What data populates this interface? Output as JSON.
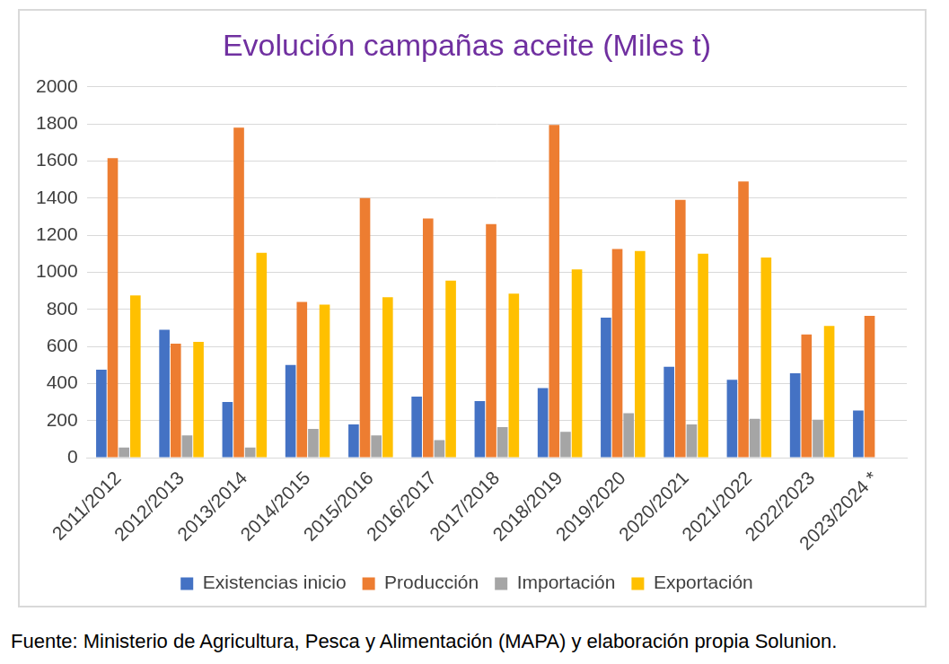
{
  "chart_data": {
    "type": "bar",
    "title": "Evolución campañas aceite (Miles t)",
    "source": "Fuente: Ministerio de Agricultura, Pesca y Alimentación (MAPA) y elaboración propia Solunion.",
    "categories": [
      "2011/2012",
      "2012/2013",
      "2013/2014",
      "2014/2015",
      "2015/2016",
      "2016/2017",
      "2017/2018",
      "2018/2019",
      "2019/2020",
      "2020/2021",
      "2021/2022",
      "2022/2023",
      "2023/2024 *"
    ],
    "series": [
      {
        "name": "Existencias inicio",
        "color": "#4472c4",
        "values": [
          475,
          690,
          300,
          500,
          180,
          330,
          305,
          375,
          755,
          490,
          420,
          455,
          255
        ]
      },
      {
        "name": "Producción",
        "color": "#ed7d31",
        "values": [
          1615,
          615,
          1780,
          840,
          1400,
          1290,
          1260,
          1795,
          1125,
          1390,
          1490,
          665,
          765
        ]
      },
      {
        "name": "Importación",
        "color": "#a5a5a5",
        "values": [
          55,
          120,
          55,
          155,
          120,
          95,
          165,
          140,
          240,
          180,
          210,
          205,
          null
        ]
      },
      {
        "name": "Exportación",
        "color": "#ffc000",
        "values": [
          875,
          625,
          1105,
          825,
          865,
          955,
          885,
          1015,
          1115,
          1100,
          1080,
          710,
          null
        ]
      }
    ],
    "ylim": [
      0,
      2000
    ],
    "yticks": [
      0,
      200,
      400,
      600,
      800,
      1000,
      1200,
      1400,
      1600,
      1800,
      2000
    ],
    "grid": true,
    "legend": "bottom"
  }
}
